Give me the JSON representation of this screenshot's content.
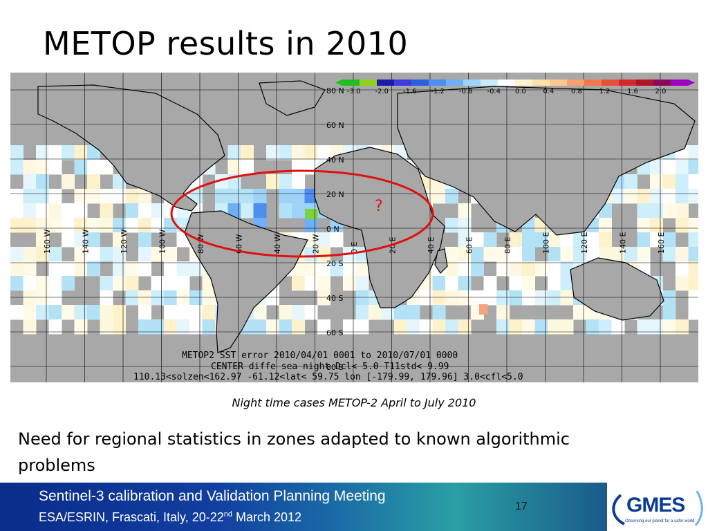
{
  "slide": {
    "title": "METOP results in 2010",
    "caption": "Night time cases METOP-2 April to July 2010",
    "body": "Need for regional statistics in zones adapted to known algorithmic problems",
    "page_number": "17"
  },
  "map": {
    "colorbar_ticks": [
      "-3.0",
      "-2.0",
      "-1.6",
      "-1.2",
      "-0.8",
      "-0.4",
      "0.0",
      "0.4",
      "0.8",
      "1.2",
      "1.6",
      "2.0"
    ],
    "colorbar_colors": [
      "#1fbf1f",
      "#8fd21d",
      "#1a1aa8",
      "#3b3be0",
      "#2a5fe0",
      "#4d8ff0",
      "#6fb0f5",
      "#9dd3f8",
      "#c8ecfa",
      "#ffffff",
      "#fff3cf",
      "#ffe0a8",
      "#fcc78f",
      "#f7a070",
      "#f07a50",
      "#e65038",
      "#d42828",
      "#b0142a",
      "#8a0a5a",
      "#a000c0"
    ],
    "lat_labels": [
      "80 N",
      "60 N",
      "40 N",
      "20 N",
      "0 N",
      "20 S",
      "40 S",
      "60 S",
      "80 S"
    ],
    "lon_labels": [
      "160 W",
      "140 W",
      "120 W",
      "100 W",
      "80 W",
      "60 W",
      "40 W",
      "20 W",
      "0 E",
      "20 E",
      "40 E",
      "60 E",
      "80 E",
      "100 E",
      "120 E",
      "140 E",
      "160 E"
    ],
    "annotation": "?",
    "footer_line1": "METOP2  SST error  2010/04/01 0001 to 2010/07/01 0000",
    "footer_line2": "CENTER diffe  sea night Dcl< 5.0  T11std< 9.99",
    "footer_line3": "110.13<solzen<162.97   -61.12<lat< 59.75  lon [-179.99, 179.96]  3.0<cfl<5.0",
    "colors": {
      "land": "#a8a8a8",
      "ellipse": "#e01010",
      "annotation": "#e01010",
      "grid": "#000000"
    }
  },
  "footer": {
    "line1": "Sentinel-3 calibration and Validation Planning Meeting",
    "line2_prefix": "ESA/ESRIN, Frascati, Italy, 20-22",
    "line2_sup": "nd",
    "line2_suffix": " March 2012",
    "logo": "GMES",
    "logo_tagline": "Observing our planet for a safer world"
  }
}
